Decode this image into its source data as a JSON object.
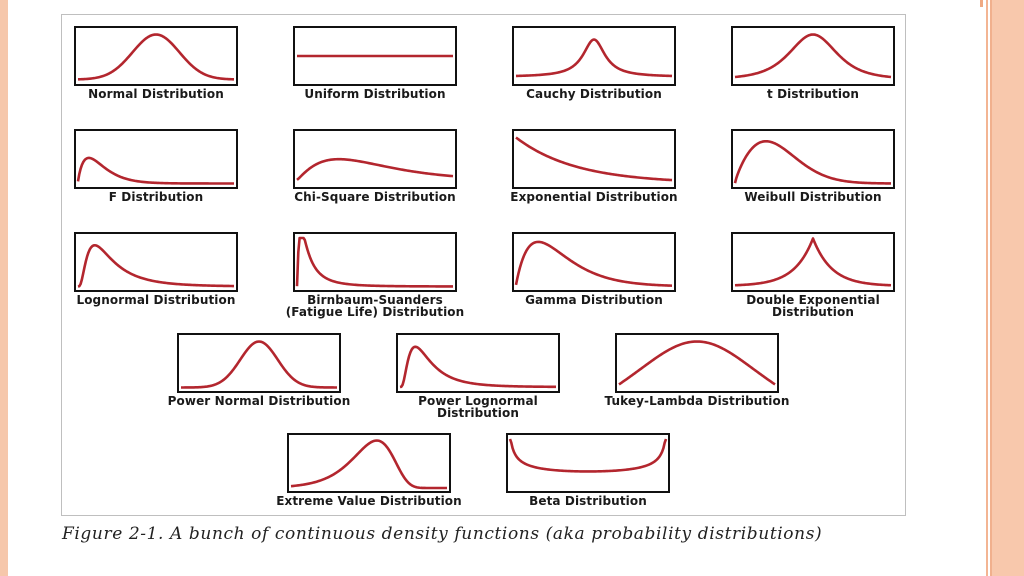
{
  "figure": {
    "caption": "Figure 2-1. A bunch of continuous density functions (aka probability distributions)",
    "curve_color": "#b3262e",
    "panels": [
      {
        "id": "normal",
        "label": "Normal Distribution",
        "icon": "normal-curve-icon"
      },
      {
        "id": "uniform",
        "label": "Uniform Distribution",
        "icon": "uniform-line-icon"
      },
      {
        "id": "cauchy",
        "label": "Cauchy Distribution",
        "icon": "cauchy-curve-icon"
      },
      {
        "id": "t",
        "label": "t Distribution",
        "icon": "t-curve-icon"
      },
      {
        "id": "f",
        "label": "F Distribution",
        "icon": "f-curve-icon"
      },
      {
        "id": "chisq",
        "label": "Chi-Square Distribution",
        "icon": "chi-square-curve-icon"
      },
      {
        "id": "exponential",
        "label": "Exponential Distribution",
        "icon": "exponential-curve-icon"
      },
      {
        "id": "weibull",
        "label": "Weibull Distribution",
        "icon": "weibull-curve-icon"
      },
      {
        "id": "lognormal",
        "label": "Lognormal Distribution",
        "icon": "lognormal-curve-icon"
      },
      {
        "id": "birnbaum",
        "label": "Birnbaum-Suanders\n(Fatigue Life) Distribution",
        "icon": "birnbaum-saunders-curve-icon"
      },
      {
        "id": "gamma",
        "label": "Gamma Distribution",
        "icon": "gamma-curve-icon"
      },
      {
        "id": "double_exp",
        "label": "Double Exponential\nDistribution",
        "icon": "double-exponential-curve-icon"
      },
      {
        "id": "power_normal",
        "label": "Power Normal Distribution",
        "icon": "power-normal-curve-icon"
      },
      {
        "id": "power_lognormal",
        "label": "Power Lognormal\nDistribution",
        "icon": "power-lognormal-curve-icon"
      },
      {
        "id": "tukey_lambda",
        "label": "Tukey-Lambda Distribution",
        "icon": "tukey-lambda-curve-icon"
      },
      {
        "id": "extreme_value",
        "label": "Extreme Value Distribution",
        "icon": "extreme-value-curve-icon"
      },
      {
        "id": "beta",
        "label": "Beta Distribution",
        "icon": "beta-curve-icon"
      }
    ]
  }
}
